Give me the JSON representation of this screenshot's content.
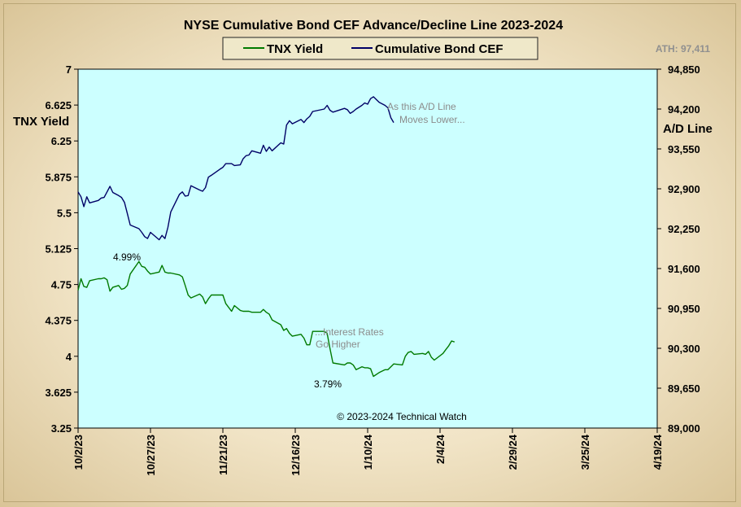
{
  "chart_data": {
    "type": "line",
    "title": "NYSE Cumulative  Bond CEF Advance/Decline  Line 2023-2024",
    "ath_label": "ATH: 97,411",
    "ylabel_left": "TNX Yield",
    "ylabel_right": "A/D Line",
    "copyright": "© 2023-2024  Technical Watch",
    "colors": {
      "plot_bg": "#ccffff",
      "tnx": "#007a00",
      "cef": "#000066",
      "annotation": "#8c8c8c"
    },
    "legend": {
      "position": "top-center",
      "items": [
        "TNX Yield",
        "Cumulative Bond CEF"
      ]
    },
    "left_axis": {
      "ylim": [
        3.25,
        7
      ],
      "ticks": [
        "7",
        "6.625",
        "6.25",
        "5.875",
        "5.5",
        "5.125",
        "4.75",
        "4.375",
        "4",
        "3.625",
        "3.25"
      ]
    },
    "right_axis": {
      "ylim": [
        89000,
        94850
      ],
      "ticks": [
        "94,850",
        "94,200",
        "93,550",
        "92,900",
        "92,250",
        "91,600",
        "90,950",
        "90,300",
        "89,650",
        "89,000"
      ]
    },
    "x_axis": {
      "start_date": "2023-10-02",
      "end_date": "2024-04-19",
      "tick_labels": [
        "10/2/23",
        "10/27/23",
        "11/21/23",
        "12/16/23",
        "1/10/24",
        "2/4/24",
        "2/29/24",
        "3/25/24",
        "4/19/24"
      ],
      "tick_dates": [
        "2023-10-02",
        "2023-10-27",
        "2023-11-21",
        "2023-12-16",
        "2024-01-10",
        "2024-02-04",
        "2024-02-29",
        "2024-03-25",
        "2024-04-19"
      ]
    },
    "annotations": [
      {
        "text": "As this A/D Line",
        "kind": "note"
      },
      {
        "text": "Moves Lower...",
        "kind": "note"
      },
      {
        "text": "...Interest Rates",
        "kind": "note"
      },
      {
        "text": "Go Higher",
        "kind": "note"
      },
      {
        "text": "4.99%",
        "kind": "value"
      },
      {
        "text": "3.79%",
        "kind": "value"
      }
    ],
    "series": [
      {
        "name": "TNX Yield",
        "axis": "left",
        "points": [
          [
            "2023-10-02",
            4.69
          ],
          [
            "2023-10-03",
            4.81
          ],
          [
            "2023-10-04",
            4.73
          ],
          [
            "2023-10-05",
            4.72
          ],
          [
            "2023-10-06",
            4.79
          ],
          [
            "2023-10-09",
            4.81
          ],
          [
            "2023-10-10",
            4.81
          ],
          [
            "2023-10-11",
            4.82
          ],
          [
            "2023-10-12",
            4.8
          ],
          [
            "2023-10-13",
            4.68
          ],
          [
            "2023-10-14",
            4.72
          ],
          [
            "2023-10-16",
            4.74
          ],
          [
            "2023-10-17",
            4.7
          ],
          [
            "2023-10-18",
            4.71
          ],
          [
            "2023-10-19",
            4.74
          ],
          [
            "2023-10-20",
            4.86
          ],
          [
            "2023-10-23",
            4.99
          ],
          [
            "2023-10-24",
            4.94
          ],
          [
            "2023-10-25",
            4.93
          ],
          [
            "2023-10-26",
            4.89
          ],
          [
            "2023-10-27",
            4.86
          ],
          [
            "2023-10-30",
            4.88
          ],
          [
            "2023-10-31",
            4.95
          ],
          [
            "2023-11-01",
            4.88
          ],
          [
            "2023-11-02",
            4.87
          ],
          [
            "2023-11-03",
            4.87
          ],
          [
            "2023-11-06",
            4.85
          ],
          [
            "2023-11-07",
            4.83
          ],
          [
            "2023-11-08",
            4.74
          ],
          [
            "2023-11-09",
            4.64
          ],
          [
            "2023-11-10",
            4.61
          ],
          [
            "2023-11-13",
            4.65
          ],
          [
            "2023-11-14",
            4.62
          ],
          [
            "2023-11-15",
            4.55
          ],
          [
            "2023-11-16",
            4.6
          ],
          [
            "2023-11-17",
            4.64
          ],
          [
            "2023-11-20",
            4.64
          ],
          [
            "2023-11-21",
            4.64
          ],
          [
            "2023-11-22",
            4.55
          ],
          [
            "2023-11-24",
            4.47
          ],
          [
            "2023-11-25",
            4.53
          ],
          [
            "2023-11-27",
            4.48
          ],
          [
            "2023-11-28",
            4.47
          ],
          [
            "2023-11-29",
            4.47
          ],
          [
            "2023-11-30",
            4.47
          ],
          [
            "2023-12-01",
            4.46
          ],
          [
            "2023-12-04",
            4.46
          ],
          [
            "2023-12-05",
            4.49
          ],
          [
            "2023-12-06",
            4.46
          ],
          [
            "2023-12-07",
            4.44
          ],
          [
            "2023-12-08",
            4.38
          ],
          [
            "2023-12-11",
            4.33
          ],
          [
            "2023-12-12",
            4.27
          ],
          [
            "2023-12-13",
            4.29
          ],
          [
            "2023-12-14",
            4.24
          ],
          [
            "2023-12-15",
            4.21
          ],
          [
            "2023-12-18",
            4.23
          ],
          [
            "2023-12-19",
            4.19
          ],
          [
            "2023-12-20",
            4.12
          ],
          [
            "2023-12-21",
            4.12
          ],
          [
            "2023-12-22",
            4.26
          ],
          [
            "2023-12-26",
            4.26
          ],
          [
            "2023-12-27",
            4.24
          ],
          [
            "2023-12-28",
            4.08
          ],
          [
            "2023-12-29",
            3.93
          ],
          [
            "2024-01-02",
            3.91
          ],
          [
            "2024-01-03",
            3.93
          ],
          [
            "2024-01-04",
            3.93
          ],
          [
            "2024-01-05",
            3.91
          ],
          [
            "2024-01-06",
            3.86
          ],
          [
            "2024-01-08",
            3.89
          ],
          [
            "2024-01-09",
            3.88
          ],
          [
            "2024-01-10",
            3.88
          ],
          [
            "2024-01-11",
            3.87
          ],
          [
            "2024-01-12",
            3.79
          ],
          [
            "2024-01-14",
            3.83
          ],
          [
            "2024-01-16",
            3.86
          ],
          [
            "2024-01-17",
            3.86
          ],
          [
            "2024-01-18",
            3.89
          ],
          [
            "2024-01-19",
            3.92
          ],
          [
            "2024-01-22",
            3.91
          ],
          [
            "2024-01-23",
            4.0
          ],
          [
            "2024-01-24",
            4.04
          ],
          [
            "2024-01-25",
            4.05
          ],
          [
            "2024-01-26",
            4.02
          ],
          [
            "2024-01-29",
            4.03
          ],
          [
            "2024-01-30",
            4.02
          ],
          [
            "2024-01-31",
            4.05
          ],
          [
            "2024-02-01",
            3.99
          ],
          [
            "2024-02-02",
            3.96
          ],
          [
            "2024-02-05",
            4.03
          ],
          [
            "2024-02-06",
            4.07
          ],
          [
            "2024-02-07",
            4.11
          ],
          [
            "2024-02-08",
            4.16
          ],
          [
            "2024-02-09",
            4.15
          ]
        ]
      },
      {
        "name": "Cumulative Bond CEF",
        "axis": "right",
        "points": [
          [
            "2023-10-02",
            92850.0
          ],
          [
            "2023-10-03",
            92770.0
          ],
          [
            "2023-10-04",
            92610.0
          ],
          [
            "2023-10-05",
            92770.0
          ],
          [
            "2023-10-06",
            92670.0
          ],
          [
            "2023-10-09",
            92710.0
          ],
          [
            "2023-10-10",
            92750.0
          ],
          [
            "2023-10-11",
            92760.0
          ],
          [
            "2023-10-12",
            92850.0
          ],
          [
            "2023-10-13",
            92940.0
          ],
          [
            "2023-10-14",
            92840.0
          ],
          [
            "2023-10-16",
            92790.0
          ],
          [
            "2023-10-17",
            92760.0
          ],
          [
            "2023-10-18",
            92680.0
          ],
          [
            "2023-10-19",
            92500.0
          ],
          [
            "2023-10-20",
            92310.0
          ],
          [
            "2023-10-23",
            92250.0
          ],
          [
            "2023-10-24",
            92190.0
          ],
          [
            "2023-10-25",
            92120.0
          ],
          [
            "2023-10-26",
            92090.0
          ],
          [
            "2023-10-27",
            92190.0
          ],
          [
            "2023-10-30",
            92070.0
          ],
          [
            "2023-10-31",
            92140.0
          ],
          [
            "2023-11-01",
            92090.0
          ],
          [
            "2023-11-02",
            92270.0
          ],
          [
            "2023-11-03",
            92520.0
          ],
          [
            "2023-11-06",
            92810.0
          ],
          [
            "2023-11-07",
            92850.0
          ],
          [
            "2023-11-08",
            92780.0
          ],
          [
            "2023-11-09",
            92790.0
          ],
          [
            "2023-11-10",
            92950.0
          ],
          [
            "2023-11-13",
            92880.0
          ],
          [
            "2023-11-14",
            92860.0
          ],
          [
            "2023-11-15",
            92920.0
          ],
          [
            "2023-11-16",
            93090.0
          ],
          [
            "2023-11-17",
            93120.0
          ],
          [
            "2023-11-20",
            93220.0
          ],
          [
            "2023-11-21",
            93250.0
          ],
          [
            "2023-11-22",
            93310.0
          ],
          [
            "2023-11-24",
            93310.0
          ],
          [
            "2023-11-25",
            93280.0
          ],
          [
            "2023-11-27",
            93290.0
          ],
          [
            "2023-11-28",
            93390.0
          ],
          [
            "2023-11-29",
            93440.0
          ],
          [
            "2023-11-30",
            93450.0
          ],
          [
            "2023-12-01",
            93520.0
          ],
          [
            "2023-12-04",
            93480.0
          ],
          [
            "2023-12-05",
            93610.0
          ],
          [
            "2023-12-06",
            93510.0
          ],
          [
            "2023-12-07",
            93580.0
          ],
          [
            "2023-12-08",
            93520.0
          ],
          [
            "2023-12-11",
            93650.0
          ],
          [
            "2023-12-12",
            93630.0
          ],
          [
            "2023-12-13",
            93940.0
          ],
          [
            "2023-12-14",
            94010.0
          ],
          [
            "2023-12-15",
            93960.0
          ],
          [
            "2023-12-18",
            94030.0
          ],
          [
            "2023-12-19",
            93980.0
          ],
          [
            "2023-12-20",
            94040.0
          ],
          [
            "2023-12-21",
            94080.0
          ],
          [
            "2023-12-22",
            94160.0
          ],
          [
            "2023-12-26",
            94200.0
          ],
          [
            "2023-12-27",
            94260.0
          ],
          [
            "2023-12-28",
            94180.0
          ],
          [
            "2023-12-29",
            94150.0
          ],
          [
            "2024-01-02",
            94210.0
          ],
          [
            "2024-01-03",
            94190.0
          ],
          [
            "2024-01-04",
            94130.0
          ],
          [
            "2024-01-05",
            94160.0
          ],
          [
            "2024-01-06",
            94200.0
          ],
          [
            "2024-01-08",
            94260.0
          ],
          [
            "2024-01-09",
            94300.0
          ],
          [
            "2024-01-10",
            94280.0
          ],
          [
            "2024-01-11",
            94370.0
          ],
          [
            "2024-01-12",
            94400.0
          ],
          [
            "2024-01-14",
            94310.0
          ],
          [
            "2024-01-16",
            94260.0
          ],
          [
            "2024-01-17",
            94220.0
          ],
          [
            "2024-01-18",
            94060.0
          ],
          [
            "2024-01-19",
            93980.0
          ]
        ]
      }
    ]
  }
}
